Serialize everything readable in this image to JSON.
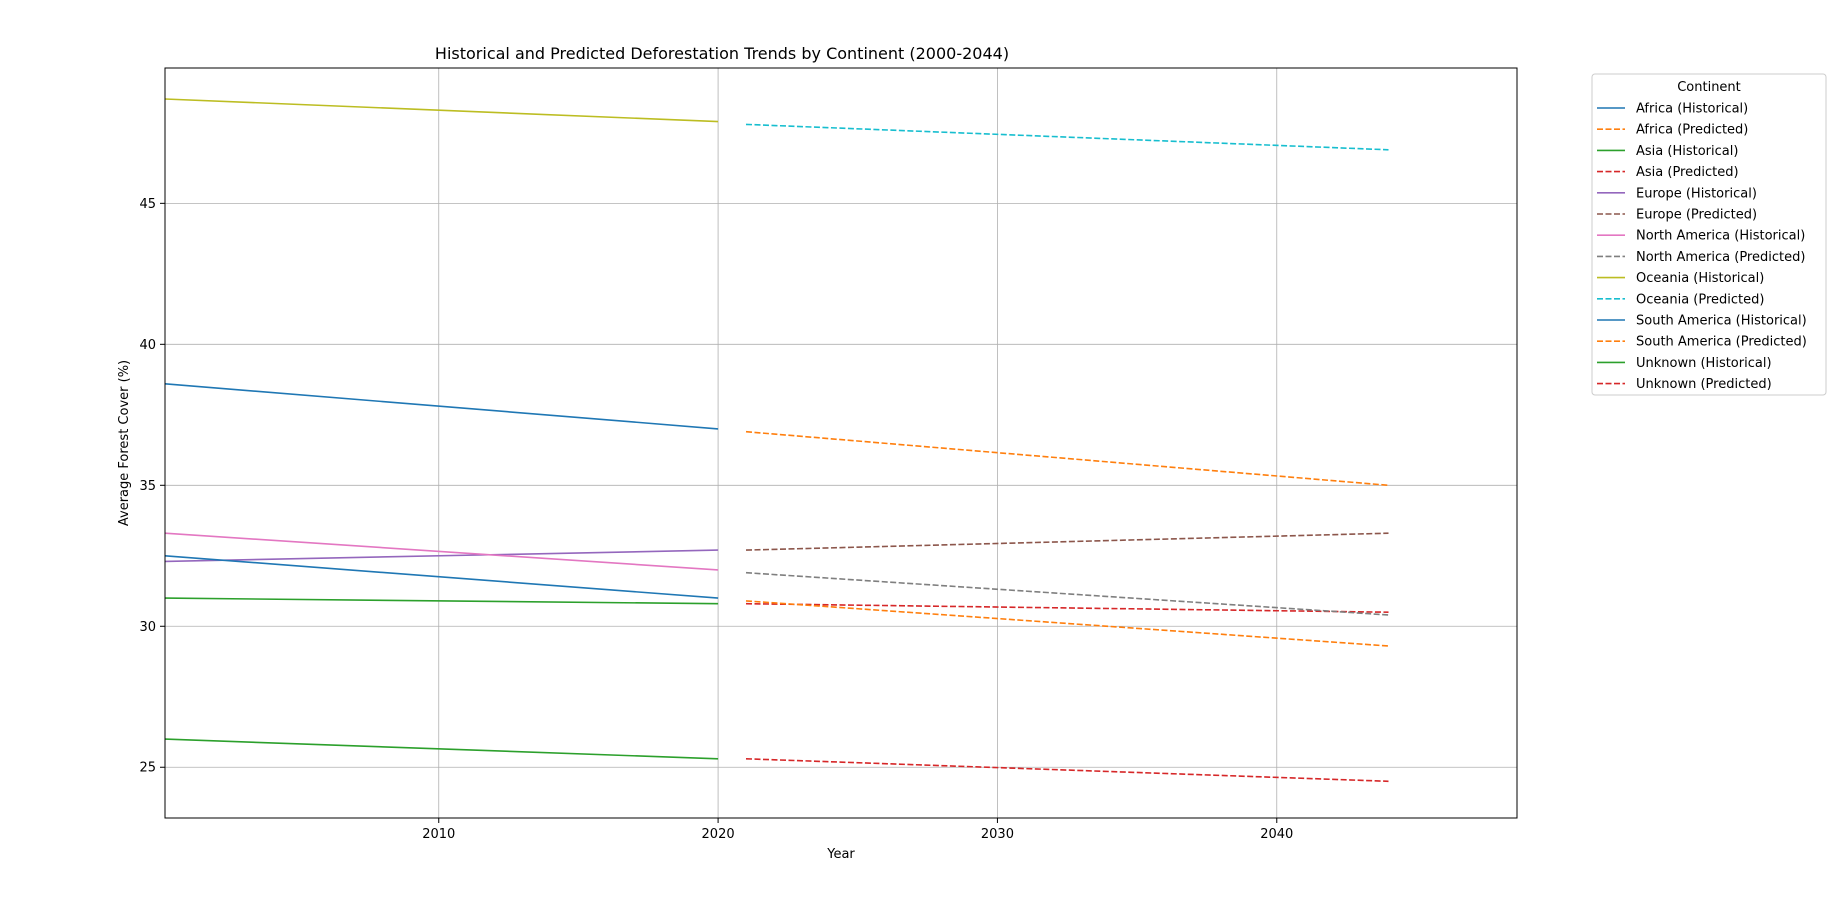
{
  "chart_data": {
    "type": "line",
    "title": "Historical and Predicted Deforestation Trends by Continent (2000-2044)",
    "xlabel": "Year",
    "ylabel": "Average Forest Cover (%)",
    "xlim": [
      2000.2,
      2048.6
    ],
    "ylim": [
      23.2,
      49.8
    ],
    "x_ticks": [
      2010,
      2020,
      2030,
      2040
    ],
    "y_ticks": [
      25,
      30,
      35,
      40,
      45
    ],
    "grid": true,
    "legend": {
      "title": "Continent",
      "placement": "outside-right-top"
    },
    "series": [
      {
        "name": "Africa (Historical)",
        "color": "#1f77b4",
        "style": "solid",
        "x": [
          2000.2,
          2020
        ],
        "y": [
          38.6,
          37.0
        ]
      },
      {
        "name": "Africa (Predicted)",
        "color": "#ff7f0e",
        "style": "dashed",
        "x": [
          2021,
          2044
        ],
        "y": [
          36.9,
          35.0
        ]
      },
      {
        "name": "Asia (Historical)",
        "color": "#2ca02c",
        "style": "solid",
        "x": [
          2000.2,
          2020
        ],
        "y": [
          31.0,
          30.8
        ]
      },
      {
        "name": "Asia (Predicted)",
        "color": "#d62728",
        "style": "dashed",
        "x": [
          2021,
          2044
        ],
        "y": [
          30.8,
          30.5
        ]
      },
      {
        "name": "Europe (Historical)",
        "color": "#9467bd",
        "style": "solid",
        "x": [
          2000.2,
          2020
        ],
        "y": [
          32.3,
          32.7
        ]
      },
      {
        "name": "Europe (Predicted)",
        "color": "#8c564b",
        "style": "dashed",
        "x": [
          2021,
          2044
        ],
        "y": [
          32.7,
          33.3
        ]
      },
      {
        "name": "North America (Historical)",
        "color": "#e377c2",
        "style": "solid",
        "x": [
          2000.2,
          2020
        ],
        "y": [
          33.3,
          32.0
        ]
      },
      {
        "name": "North America (Predicted)",
        "color": "#7f7f7f",
        "style": "dashed",
        "x": [
          2021,
          2044
        ],
        "y": [
          31.9,
          30.4
        ]
      },
      {
        "name": "Oceania (Historical)",
        "color": "#bcbd22",
        "style": "solid",
        "x": [
          2000.2,
          2020
        ],
        "y": [
          48.7,
          47.9
        ]
      },
      {
        "name": "Oceania (Predicted)",
        "color": "#17becf",
        "style": "dashed",
        "x": [
          2021,
          2044
        ],
        "y": [
          47.8,
          46.9
        ]
      },
      {
        "name": "South America (Historical)",
        "color": "#1f77b4",
        "style": "solid",
        "x": [
          2000.2,
          2020
        ],
        "y": [
          32.5,
          31.0
        ]
      },
      {
        "name": "South America (Predicted)",
        "color": "#ff7f0e",
        "style": "dashed",
        "x": [
          2021,
          2044
        ],
        "y": [
          30.9,
          29.3
        ]
      },
      {
        "name": "Unknown (Historical)",
        "color": "#2ca02c",
        "style": "solid",
        "x": [
          2000.2,
          2020
        ],
        "y": [
          26.0,
          25.3
        ]
      },
      {
        "name": "Unknown (Predicted)",
        "color": "#d62728",
        "style": "dashed",
        "x": [
          2021,
          2044
        ],
        "y": [
          25.3,
          24.5
        ]
      }
    ]
  }
}
